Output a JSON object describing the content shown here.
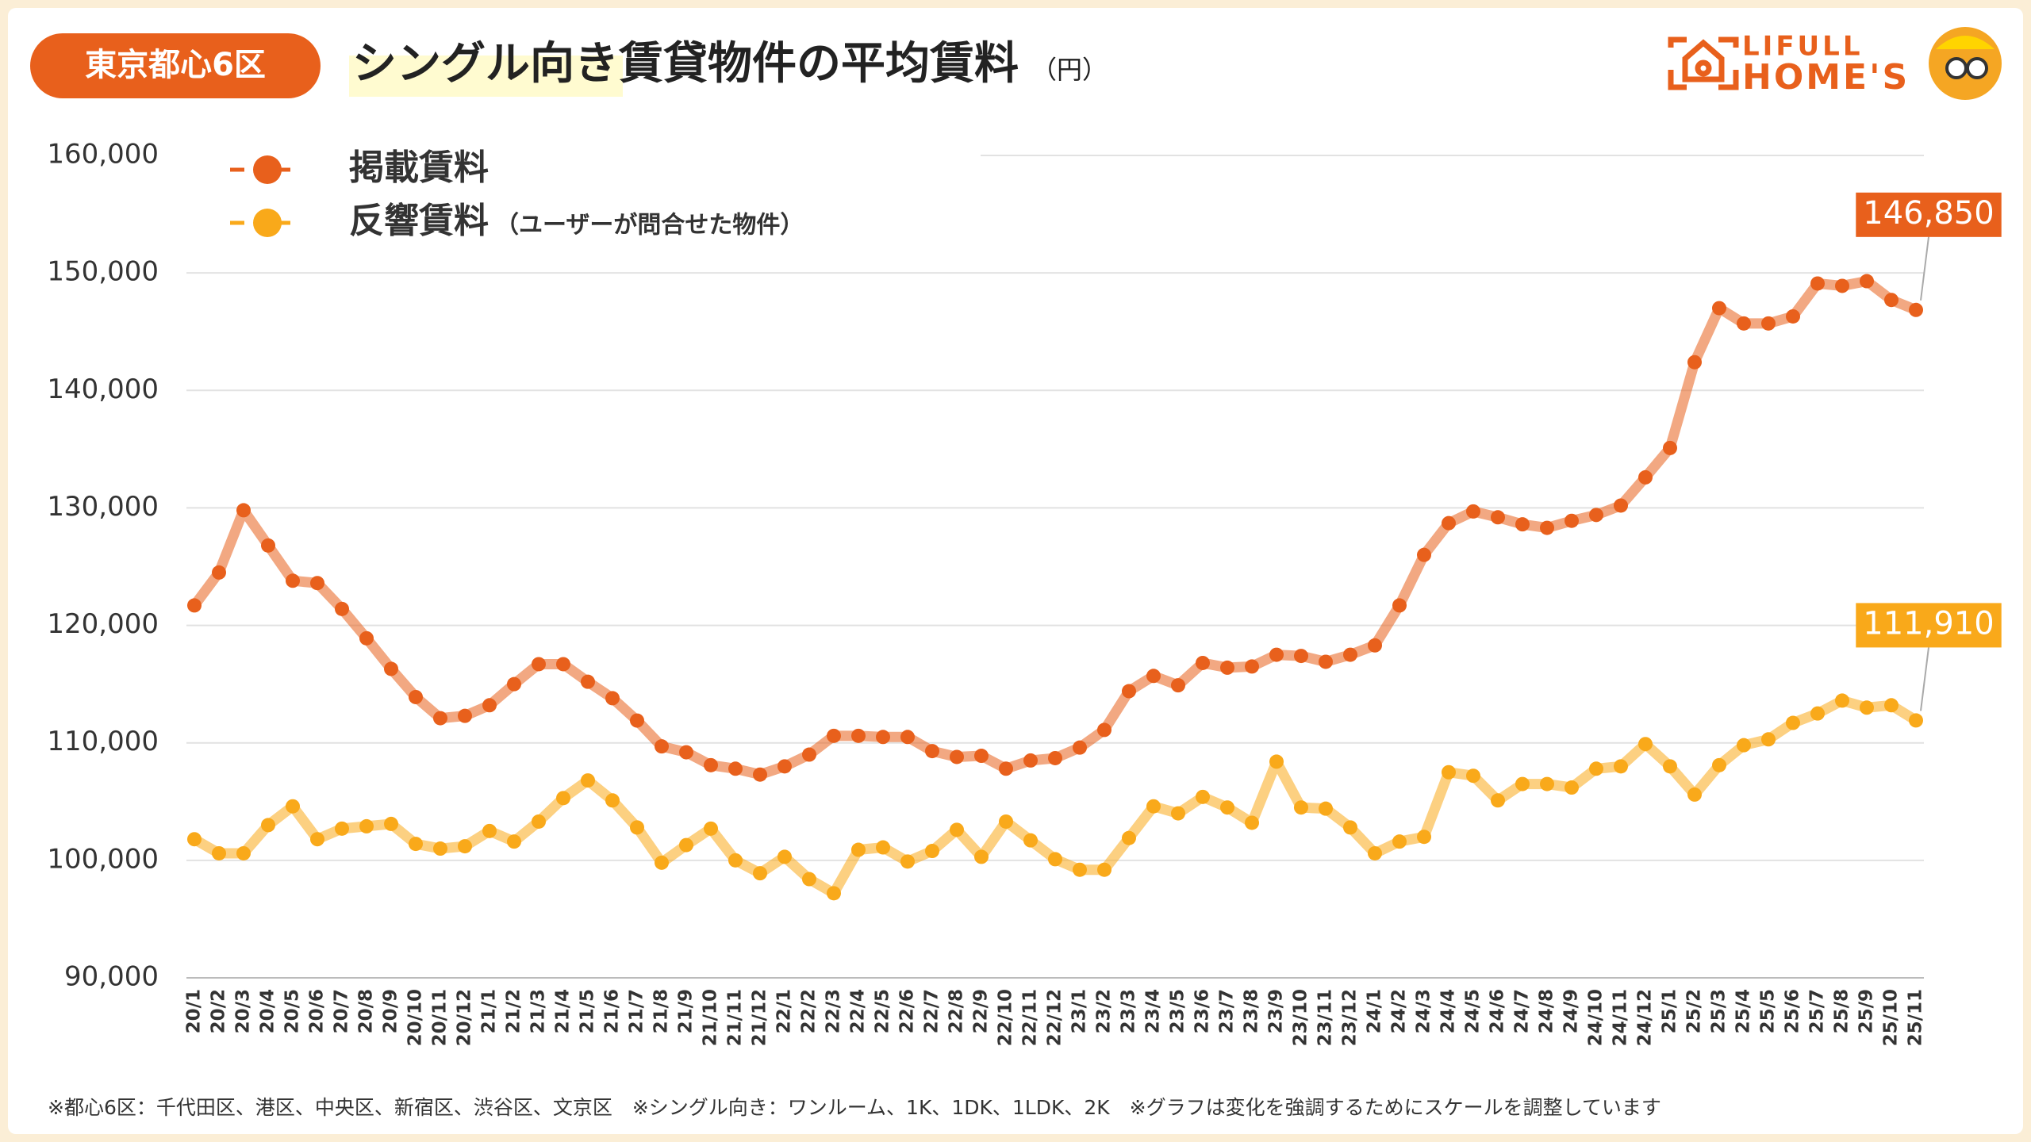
{
  "badge": "東京都心6区",
  "logo": {
    "top": "LIFULL",
    "bottom": "HOME'S"
  },
  "footnote": "※都心6区：千代田区、港区、中央区、新宿区、渋谷区、文京区　※シングル向き：ワンルーム、1K、1DK、1LDK、2K　※グラフは変化を強調するためにスケールを調整しています",
  "chart_data": {
    "type": "line",
    "title": "シングル向き賃貸物件の平均賃料",
    "unit": "（円）",
    "categories": [
      "20/1",
      "20/2",
      "20/3",
      "20/4",
      "20/5",
      "20/6",
      "20/7",
      "20/8",
      "20/9",
      "20/10",
      "20/11",
      "20/12",
      "21/1",
      "21/2",
      "21/3",
      "21/4",
      "21/5",
      "21/6",
      "21/7",
      "21/8",
      "21/9",
      "21/10",
      "21/11",
      "21/12",
      "22/1",
      "22/2",
      "22/3",
      "22/4",
      "22/5",
      "22/6",
      "22/7",
      "22/8",
      "22/9",
      "22/10",
      "22/11",
      "22/12",
      "23/1",
      "23/2",
      "23/3",
      "23/4",
      "23/5",
      "23/6",
      "23/7",
      "23/8",
      "23/9",
      "23/10",
      "23/11",
      "23/12",
      "24/1",
      "24/2",
      "24/3",
      "24/4",
      "24/5",
      "24/6",
      "24/7",
      "24/8",
      "24/9",
      "24/10",
      "24/11",
      "24/12",
      "25/1",
      "25/2",
      "25/3",
      "25/4",
      "25/5",
      "25/6",
      "25/7",
      "25/8",
      "25/9",
      "25/10",
      "25/11"
    ],
    "series": [
      {
        "name": "掲載賃料",
        "color": "#e8601c",
        "values": [
          121700,
          124500,
          129800,
          126800,
          123800,
          123600,
          121400,
          118900,
          116300,
          113900,
          112100,
          112300,
          113200,
          115000,
          116700,
          116700,
          115200,
          113800,
          111900,
          109700,
          109200,
          108100,
          107800,
          107300,
          108000,
          109000,
          110600,
          110600,
          110500,
          110500,
          109300,
          108800,
          108900,
          107800,
          108500,
          108700,
          109600,
          111100,
          114400,
          115700,
          114900,
          116800,
          116400,
          116500,
          117500,
          117400,
          116900,
          117500,
          118300,
          121700,
          126000,
          128700,
          129700,
          129200,
          128600,
          128300,
          128900,
          129400,
          130200,
          132600,
          135100,
          142400,
          147000,
          145700,
          145700,
          146300,
          149100,
          148900,
          149300,
          147700,
          146850
        ],
        "value_labels": [
          null,
          null,
          null,
          null,
          null,
          null,
          null,
          null,
          null,
          null,
          null,
          null,
          null,
          null,
          null,
          null,
          null,
          null,
          null,
          null,
          null,
          null,
          null,
          null,
          null,
          null,
          null,
          null,
          null,
          null,
          null,
          null,
          null,
          null,
          null,
          null,
          null,
          null,
          null,
          null,
          null,
          null,
          null,
          null,
          null,
          null,
          null,
          null,
          null,
          null,
          null,
          null,
          null,
          null,
          null,
          null,
          null,
          null,
          null,
          null,
          null,
          null,
          null,
          null,
          null,
          null,
          null,
          null,
          null,
          null,
          "146,850"
        ]
      },
      {
        "name": "反響賃料",
        "note": "（ユーザーが問合せた物件）",
        "color": "#f9a91a",
        "values": [
          101800,
          100600,
          100600,
          103000,
          104600,
          101800,
          102700,
          102900,
          103100,
          101400,
          101000,
          101200,
          102500,
          101600,
          103300,
          105300,
          106800,
          105100,
          102800,
          99800,
          101300,
          102700,
          100000,
          98900,
          100300,
          98400,
          97200,
          100900,
          101100,
          99900,
          100800,
          102600,
          100300,
          103300,
          101700,
          100100,
          99200,
          99200,
          101900,
          104600,
          104000,
          105400,
          104500,
          103200,
          108400,
          104500,
          104400,
          102800,
          100600,
          101600,
          102000,
          107500,
          107200,
          105100,
          106500,
          106500,
          106200,
          107800,
          108000,
          109900,
          108000,
          105600,
          108100,
          109800,
          110300,
          111700,
          112500,
          113600,
          113000,
          113200,
          111910
        ],
        "value_labels": [
          null,
          null,
          null,
          null,
          null,
          null,
          null,
          null,
          null,
          null,
          null,
          null,
          null,
          null,
          null,
          null,
          null,
          null,
          null,
          null,
          null,
          null,
          null,
          null,
          null,
          null,
          null,
          null,
          null,
          null,
          null,
          null,
          null,
          null,
          null,
          null,
          null,
          null,
          null,
          null,
          null,
          null,
          null,
          null,
          null,
          null,
          null,
          null,
          null,
          null,
          null,
          null,
          null,
          null,
          null,
          null,
          null,
          null,
          null,
          null,
          null,
          null,
          null,
          null,
          null,
          null,
          null,
          null,
          null,
          null,
          "111,910"
        ]
      }
    ],
    "ylim": [
      90000,
      160000
    ],
    "yticks": [
      {
        "value": 90000,
        "label": "90,000"
      },
      {
        "value": 100000,
        "label": "100,000"
      },
      {
        "value": 110000,
        "label": "110,000"
      },
      {
        "value": 120000,
        "label": "120,000"
      },
      {
        "value": 130000,
        "label": "130,000"
      },
      {
        "value": 140000,
        "label": "140,000"
      },
      {
        "value": 150000,
        "label": "150,000"
      },
      {
        "value": 160000,
        "label": "160,000"
      }
    ],
    "grid": true
  }
}
